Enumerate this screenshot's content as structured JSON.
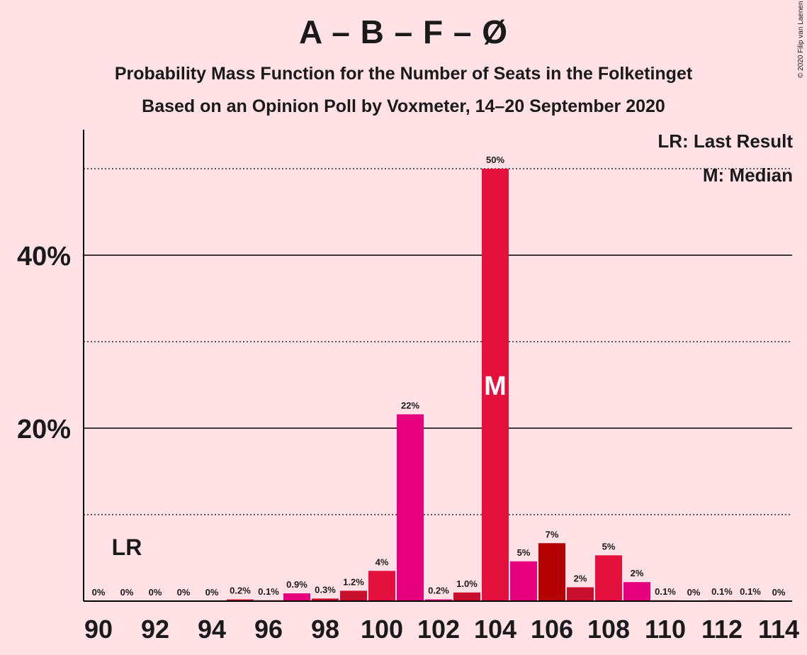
{
  "title": "A – B – F – Ø",
  "subtitle": "Probability Mass Function for the Number of Seats in the Folketinget",
  "subtitle2": "Based on an Opinion Poll by Voxmeter, 14–20 September 2020",
  "copyright": "© 2020 Filip van Laenen",
  "legend": {
    "last_result": "LR: Last Result",
    "median": "M: Median"
  },
  "markers": {
    "last_result_label": "LR",
    "last_result_seat": 91,
    "median_label": "M",
    "median_seat": 104
  },
  "chart_data": {
    "type": "bar",
    "x": [
      90,
      91,
      92,
      93,
      94,
      95,
      96,
      97,
      98,
      99,
      100,
      101,
      102,
      103,
      104,
      105,
      106,
      107,
      108,
      109,
      110,
      111,
      112,
      113,
      114
    ],
    "values": [
      0,
      0,
      0,
      0,
      0,
      0.2,
      0.1,
      0.9,
      0.3,
      1.2,
      3.5,
      21.6,
      0.2,
      1.0,
      50.0,
      4.6,
      6.7,
      1.6,
      5.3,
      2.2,
      0.1,
      0,
      0.1,
      0.1,
      0
    ],
    "labels": [
      "0%",
      "0%",
      "0%",
      "0%",
      "0%",
      "0.2%",
      "0.1%",
      "0.9%",
      "0.3%",
      "1.2%",
      "4%",
      "22%",
      "0.2%",
      "1.0%",
      "50%",
      "5%",
      "7%",
      "2%",
      "5%",
      "2%",
      "0.1%",
      "0%",
      "0.1%",
      "0.1%",
      "0%"
    ],
    "colors": [
      "#E6007E",
      "#C8102E",
      "#E6007E",
      "#C8102E",
      "#E6007E",
      "#C8102E",
      "#E6007E",
      "#E6007E",
      "#C8102E",
      "#C8102E",
      "#E4113F",
      "#E6007E",
      "#E6007E",
      "#C8102E",
      "#E4113F",
      "#E6007E",
      "#B30000",
      "#C8102E",
      "#E4113F",
      "#E6007E",
      "#E6007E",
      "#C8102E",
      "#E6007E",
      "#C8102E",
      "#E6007E"
    ],
    "xticks": [
      90,
      92,
      94,
      96,
      98,
      100,
      102,
      104,
      106,
      108,
      110,
      112,
      114
    ],
    "yticks": [
      "20%",
      "40%"
    ],
    "ylim": [
      0,
      54
    ],
    "grid": {
      "solid": [
        20,
        40
      ],
      "dotted": [
        10,
        30,
        50
      ]
    }
  }
}
